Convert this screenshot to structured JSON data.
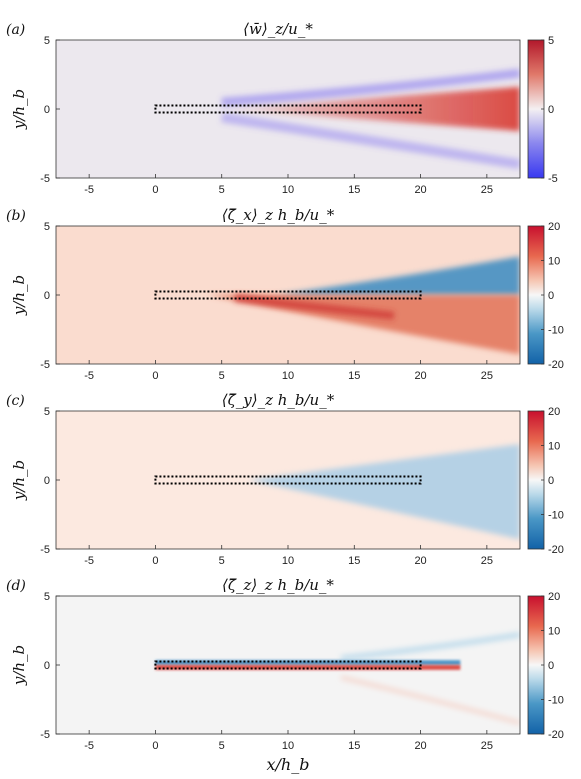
{
  "chart_data": [
    {
      "type": "heatmap",
      "panel_label": "(a)",
      "title": "⟨w̄⟩_z/u_*",
      "xlabel": "",
      "ylabel": "y/h_b",
      "xlim": [
        -7.5,
        27.5
      ],
      "ylim": [
        -5,
        5
      ],
      "xticks": [
        "-5",
        "0",
        "5",
        "10",
        "15",
        "20",
        "25"
      ],
      "yticks": [
        "5",
        "0",
        "-5"
      ],
      "colorbar": {
        "colormap": "diverging blue-white-red",
        "range": [
          -5,
          5
        ],
        "ticks": [
          "5",
          "0",
          "-5"
        ]
      },
      "structure": {
        "plate_x": [
          0,
          20
        ],
        "plate_y": 0,
        "features": [
          {
            "sign": "positive",
            "from_x": 5,
            "to_x": 27.5,
            "centre_y": 0,
            "spread": 1.6
          },
          {
            "sign": "negative",
            "from_x": 5,
            "to_x": 27.5,
            "centre_y_start": 0.6,
            "centre_y_end": 2.6,
            "spread": 0.5
          },
          {
            "sign": "negative",
            "from_x": 5,
            "to_x": 27.5,
            "centre_y_start": -0.6,
            "centre_y_end": -4.0,
            "spread": 0.6
          }
        ]
      }
    },
    {
      "type": "heatmap",
      "panel_label": "(b)",
      "title": "⟨ζ̄_x⟩_z h_b/u_*",
      "xlabel": "",
      "ylabel": "y/h_b",
      "xlim": [
        -7.5,
        27.5
      ],
      "ylim": [
        -5,
        5
      ],
      "xticks": [
        "-5",
        "0",
        "5",
        "10",
        "15",
        "20",
        "25"
      ],
      "yticks": [
        "5",
        "0",
        "-5"
      ],
      "colorbar": {
        "colormap": "diverging blue-white-red",
        "range": [
          -20,
          20
        ],
        "ticks": [
          "20",
          "10",
          "0",
          "-10",
          "-20"
        ]
      },
      "structure": {
        "plate_x": [
          0,
          20
        ],
        "plate_y": 0,
        "features": [
          {
            "sign": "negative",
            "region": "wedge above plate",
            "from_x": 9,
            "to_x": 27.5,
            "upper_edge_y_end": 2.8
          },
          {
            "sign": "positive",
            "region": "wedge below plate",
            "from_x": 4,
            "to_x": 27.5,
            "lower_edge_y_end": -4.2
          }
        ]
      }
    },
    {
      "type": "heatmap",
      "panel_label": "(c)",
      "title": "⟨ζ̄_y⟩_z h_b/u_*",
      "xlabel": "",
      "ylabel": "y/h_b",
      "xlim": [
        -7.5,
        27.5
      ],
      "ylim": [
        -5,
        5
      ],
      "xticks": [
        "-5",
        "0",
        "5",
        "10",
        "15",
        "20",
        "25"
      ],
      "yticks": [
        "5",
        "0",
        "-5"
      ],
      "colorbar": {
        "colormap": "diverging blue-white-red",
        "range": [
          -20,
          20
        ],
        "ticks": [
          "20",
          "10",
          "0",
          "-10",
          "-20"
        ]
      },
      "structure": {
        "plate_x": [
          0,
          20
        ],
        "plate_y": 0,
        "features": [
          {
            "sign": "negative",
            "region": "wedge around plate",
            "from_x": 7,
            "to_x": 27.5,
            "half_width_end": 4.3
          }
        ]
      }
    },
    {
      "type": "heatmap",
      "panel_label": "(d)",
      "title": "⟨ζ̄_z⟩_z h_b/u_*",
      "xlabel": "x/h_b",
      "ylabel": "y/h_b",
      "xlim": [
        -7.5,
        27.5
      ],
      "ylim": [
        -5,
        5
      ],
      "xticks": [
        "-5",
        "0",
        "5",
        "10",
        "15",
        "20",
        "25"
      ],
      "yticks": [
        "5",
        "0",
        "-5"
      ],
      "colorbar": {
        "colormap": "diverging blue-white-red",
        "range": [
          -20,
          20
        ],
        "ticks": [
          "20",
          "10",
          "0",
          "-10",
          "-20"
        ]
      },
      "structure": {
        "plate_x": [
          0,
          20
        ],
        "plate_y": 0,
        "features": [
          {
            "sign": "negative",
            "region": "thin sheet on upper side",
            "from_x": 0,
            "to_x": 23
          },
          {
            "sign": "positive",
            "region": "thin sheet on lower side",
            "from_x": 0,
            "to_x": 23
          },
          {
            "sign": "negative",
            "region": "faint upper branch",
            "from_x": 14,
            "to_x": 27.5,
            "centre_y_end": 2.2
          }
        ]
      }
    }
  ]
}
